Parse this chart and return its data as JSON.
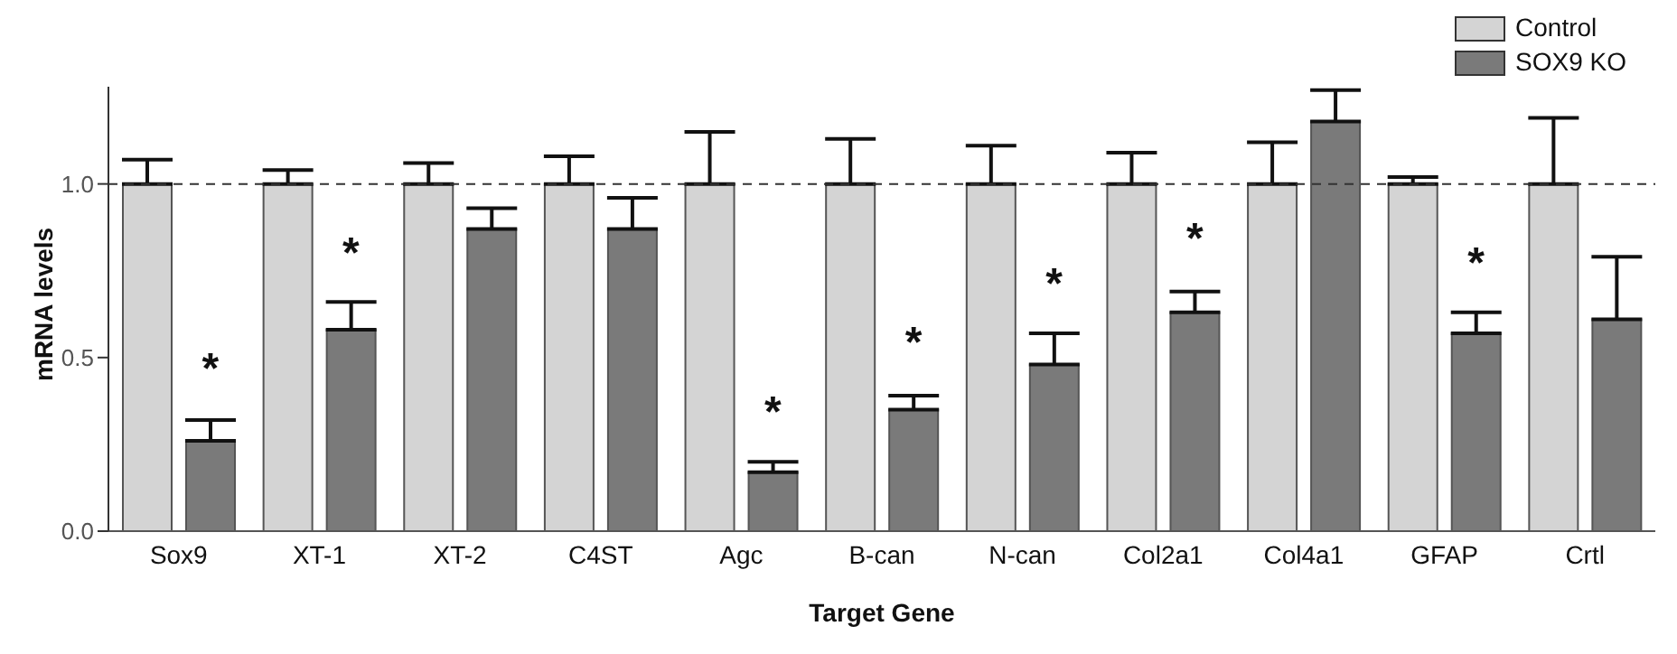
{
  "chart_data": {
    "type": "bar",
    "xlabel": "Target Gene",
    "ylabel": "mRNA levels",
    "categories": [
      "Sox9",
      "XT-1",
      "XT-2",
      "C4ST",
      "Agc",
      "B-can",
      "N-can",
      "Col2a1",
      "Col4a1",
      "GFAP",
      "Crtl"
    ],
    "series": [
      {
        "name": "Control",
        "color": "#d4d4d4",
        "values": [
          1,
          1,
          1,
          1,
          1,
          1,
          1,
          1,
          1,
          1,
          1
        ],
        "errors": [
          [
            1,
            1.07
          ],
          [
            1,
            1.04
          ],
          [
            1,
            1.06
          ],
          [
            1,
            1.08
          ],
          [
            1,
            1.15
          ],
          [
            1,
            1.13
          ],
          [
            1,
            1.11
          ],
          [
            1,
            1.09
          ],
          [
            1,
            1.12
          ],
          [
            1,
            1.02
          ],
          [
            1,
            1.19
          ]
        ]
      },
      {
        "name": "SOX9 KO",
        "color": "#7a7a7a",
        "values": [
          0.26,
          0.58,
          0.87,
          0.87,
          0.17,
          0.35,
          0.48,
          0.63,
          1.18,
          0.57,
          0.61
        ],
        "errors": [
          [
            0.26,
            0.32
          ],
          [
            0.58,
            0.66
          ],
          [
            0.87,
            0.93
          ],
          [
            0.87,
            0.96
          ],
          [
            0.17,
            0.2
          ],
          [
            0.35,
            0.39
          ],
          [
            0.48,
            0.57
          ],
          [
            0.63,
            0.69
          ],
          [
            1.18,
            1.27
          ],
          [
            0.57,
            0.63
          ],
          [
            0.61,
            0.79
          ]
        ]
      }
    ],
    "ylim": [
      0,
      1.28
    ],
    "yticks": [
      {
        "value": 0,
        "label": "0.0"
      },
      {
        "value": 0.5,
        "label": "0.5"
      },
      {
        "value": 1,
        "label": "1.0"
      }
    ],
    "ref_lines": [
      {
        "axis": "y",
        "value": 1,
        "line_style": "dashed",
        "color": "#333333"
      }
    ],
    "annotations": [
      {
        "text": "*",
        "x": "Sox9",
        "y": 0.465
      },
      {
        "text": "*",
        "x": "XT-1",
        "y": 0.8
      },
      {
        "text": "*",
        "x": "Agc",
        "y": 0.34
      },
      {
        "text": "*",
        "x": "B-can",
        "y": 0.54
      },
      {
        "text": "*",
        "x": "N-can",
        "y": 0.71
      },
      {
        "text": "*",
        "x": "Col2a1",
        "y": 0.84
      },
      {
        "text": "*",
        "x": "GFAP",
        "y": 0.77
      }
    ],
    "legend": "top right",
    "grid": false
  }
}
